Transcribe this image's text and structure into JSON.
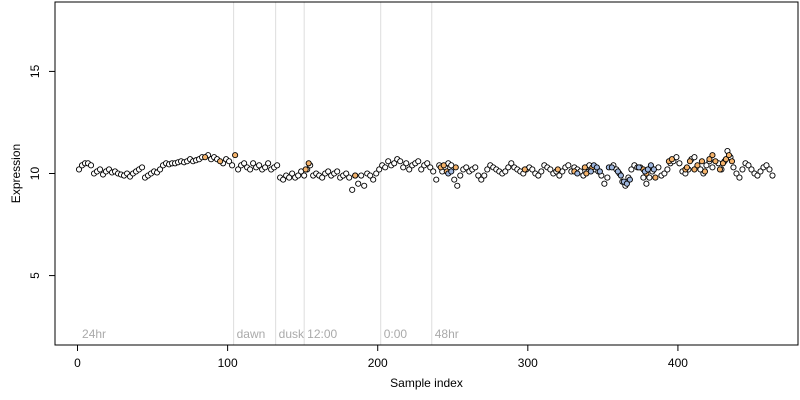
{
  "chart_data": {
    "type": "scatter",
    "xlabel": "Sample index",
    "ylabel": "Expression",
    "xlim": [
      -15,
      480
    ],
    "ylim": [
      1.6,
      18.4
    ],
    "xticks": [
      0,
      100,
      200,
      300,
      400
    ],
    "yticks": [
      5,
      10,
      15
    ],
    "grid": false,
    "vlines": [
      {
        "x": 104,
        "label": "dawn"
      },
      {
        "x": 132,
        "label": "dusk"
      },
      {
        "x": 151,
        "label": "12:00"
      },
      {
        "x": 202,
        "label": "0:00"
      },
      {
        "x": 236,
        "label": "48hr"
      }
    ],
    "annotations": [
      {
        "x": 3,
        "label": "24hr"
      }
    ],
    "colors": {
      "white": "#ffffff",
      "orange": "#f5b36b",
      "blue": "#9fb7df",
      "outline": "#000000",
      "vline": "#dddddd",
      "vlabel": "#aaaaaa"
    },
    "series": [
      {
        "category": "white",
        "points": [
          [
            1,
            10.2
          ],
          [
            3,
            10.4
          ],
          [
            5,
            10.5
          ],
          [
            7,
            10.5
          ],
          [
            9,
            10.4
          ],
          [
            11,
            10
          ],
          [
            13,
            10.1
          ],
          [
            15,
            10.2
          ],
          [
            17,
            9.95
          ],
          [
            19,
            10.1
          ],
          [
            21,
            10.2
          ],
          [
            23,
            10.05
          ],
          [
            25,
            10.1
          ],
          [
            27,
            10
          ],
          [
            29,
            9.95
          ],
          [
            31,
            9.9
          ],
          [
            33,
            10
          ],
          [
            35,
            9.85
          ],
          [
            37,
            10
          ],
          [
            39,
            10.1
          ],
          [
            41,
            10.2
          ],
          [
            43,
            10.3
          ],
          [
            45,
            9.8
          ],
          [
            47,
            9.9
          ],
          [
            49,
            10
          ],
          [
            51,
            10.1
          ],
          [
            53,
            10.05
          ],
          [
            55,
            10.2
          ],
          [
            57,
            10.4
          ],
          [
            59,
            10.5
          ],
          [
            61,
            10.45
          ],
          [
            63,
            10.5
          ],
          [
            65,
            10.5
          ],
          [
            67,
            10.55
          ],
          [
            69,
            10.6
          ],
          [
            71,
            10.55
          ],
          [
            73,
            10.6
          ],
          [
            75,
            10.7
          ],
          [
            77,
            10.6
          ],
          [
            79,
            10.65
          ],
          [
            81,
            10.7
          ],
          [
            83,
            10.8
          ],
          [
            87,
            10.9
          ],
          [
            89,
            10.7
          ],
          [
            91,
            10.8
          ],
          [
            93,
            10.7
          ],
          [
            97,
            10.5
          ],
          [
            99,
            10.7
          ],
          [
            101,
            10.6
          ],
          [
            103,
            10.4
          ],
          [
            107,
            10.2
          ],
          [
            109,
            10.4
          ],
          [
            111,
            10.5
          ],
          [
            113,
            10.3
          ],
          [
            115,
            10.2
          ],
          [
            117,
            10.5
          ],
          [
            119,
            10.3
          ],
          [
            121,
            10.4
          ],
          [
            123,
            10.2
          ],
          [
            125,
            10.3
          ],
          [
            127,
            10.5
          ],
          [
            129,
            10.2
          ],
          [
            131,
            10.3
          ],
          [
            133,
            10.4
          ],
          [
            135,
            9.8
          ],
          [
            137,
            9.7
          ],
          [
            139,
            9.9
          ],
          [
            141,
            9.8
          ],
          [
            143,
            10
          ],
          [
            145,
            9.8
          ],
          [
            147,
            9.9
          ],
          [
            149,
            10.1
          ],
          [
            151,
            9.9
          ],
          [
            153,
            10.2
          ],
          [
            155,
            10.4
          ],
          [
            157,
            9.9
          ],
          [
            159,
            10
          ],
          [
            161,
            9.9
          ],
          [
            163,
            9.8
          ],
          [
            165,
            10
          ],
          [
            167,
            10.1
          ],
          [
            169,
            9.9
          ],
          [
            171,
            10
          ],
          [
            173,
            10.1
          ],
          [
            175,
            9.8
          ],
          [
            177,
            9.9
          ],
          [
            179,
            10
          ],
          [
            181,
            9.8
          ],
          [
            183,
            9.2
          ],
          [
            185,
            9.9
          ],
          [
            187,
            9.5
          ],
          [
            189,
            9.9
          ],
          [
            191,
            9.4
          ],
          [
            193,
            10
          ],
          [
            195,
            9.9
          ],
          [
            197,
            9.7
          ],
          [
            199,
            10
          ],
          [
            201,
            10.2
          ],
          [
            203,
            10.4
          ],
          [
            205,
            10.3
          ],
          [
            207,
            10.6
          ],
          [
            209,
            10.4
          ],
          [
            211,
            10.5
          ],
          [
            213,
            10.7
          ],
          [
            215,
            10.6
          ],
          [
            217,
            10.3
          ],
          [
            219,
            10.5
          ],
          [
            221,
            10.2
          ],
          [
            223,
            10.4
          ],
          [
            225,
            10.5
          ],
          [
            227,
            10.6
          ],
          [
            229,
            10.2
          ],
          [
            231,
            10.4
          ],
          [
            233,
            10.5
          ],
          [
            235,
            10.3
          ],
          [
            237,
            10.1
          ],
          [
            239,
            9.7
          ],
          [
            241,
            10.4
          ],
          [
            243,
            10.1
          ],
          [
            245,
            10.3
          ],
          [
            247,
            10.5
          ],
          [
            249,
            10.4
          ],
          [
            251,
            9.7
          ],
          [
            253,
            9.4
          ],
          [
            255,
            9.9
          ],
          [
            257,
            10.2
          ],
          [
            259,
            10.3
          ],
          [
            261,
            10.1
          ],
          [
            263,
            10.2
          ],
          [
            265,
            10.3
          ],
          [
            267,
            9.9
          ],
          [
            269,
            9.7
          ],
          [
            271,
            9.9
          ],
          [
            273,
            10.2
          ],
          [
            275,
            10.4
          ],
          [
            277,
            10.3
          ],
          [
            279,
            10.2
          ],
          [
            281,
            10.1
          ],
          [
            283,
            10
          ],
          [
            285,
            10.1
          ],
          [
            287,
            10.3
          ],
          [
            289,
            10.5
          ],
          [
            291,
            10.3
          ],
          [
            293,
            10.2
          ],
          [
            295,
            10.1
          ],
          [
            297,
            10
          ],
          [
            299,
            10.2
          ],
          [
            301,
            10.3
          ],
          [
            303,
            10.2
          ],
          [
            305,
            10
          ],
          [
            307,
            9.9
          ],
          [
            309,
            10.1
          ],
          [
            311,
            10.4
          ],
          [
            313,
            10.3
          ],
          [
            315,
            10.2
          ],
          [
            317,
            10
          ],
          [
            319,
            10.1
          ],
          [
            321,
            9.9
          ],
          [
            323,
            10.1
          ],
          [
            325,
            10.3
          ],
          [
            327,
            10.4
          ],
          [
            329,
            10.1
          ],
          [
            331,
            10.3
          ],
          [
            333,
            10.2
          ],
          [
            335,
            10.1
          ],
          [
            337,
            9.9
          ],
          [
            339,
            10.3
          ],
          [
            341,
            10.4
          ],
          [
            345,
            10.2
          ],
          [
            347,
            10.1
          ],
          [
            349,
            9.9
          ],
          [
            351,
            9.5
          ],
          [
            353,
            9.8
          ],
          [
            357,
            10.4
          ],
          [
            359,
            10.2
          ],
          [
            361,
            10
          ],
          [
            363,
            9.6
          ],
          [
            365,
            9.4
          ],
          [
            367,
            9.8
          ],
          [
            369,
            10.2
          ],
          [
            371,
            10.4
          ],
          [
            373,
            10.3
          ],
          [
            375,
            10.3
          ],
          [
            377,
            9.8
          ],
          [
            379,
            9.5
          ],
          [
            381,
            9.8
          ],
          [
            383,
            10.1
          ],
          [
            387,
            10.3
          ],
          [
            389,
            9.9
          ],
          [
            391,
            10
          ],
          [
            393,
            10.2
          ],
          [
            395,
            10.5
          ],
          [
            397,
            10.6
          ],
          [
            399,
            10.8
          ],
          [
            401,
            10.5
          ],
          [
            403,
            10.1
          ],
          [
            405,
            10
          ],
          [
            407,
            10.2
          ],
          [
            409,
            10.7
          ],
          [
            411,
            10.8
          ],
          [
            415,
            10.2
          ],
          [
            417,
            10
          ],
          [
            419,
            10.4
          ],
          [
            421,
            10.6
          ],
          [
            423,
            10.3
          ],
          [
            427,
            10.5
          ],
          [
            429,
            10.2
          ],
          [
            431,
            10.6
          ],
          [
            433,
            11.1
          ],
          [
            435,
            10.8
          ],
          [
            437,
            10.3
          ],
          [
            439,
            10
          ],
          [
            441,
            9.8
          ],
          [
            443,
            10.2
          ],
          [
            445,
            10.5
          ],
          [
            447,
            10.4
          ],
          [
            449,
            10.2
          ],
          [
            451,
            10
          ],
          [
            453,
            9.9
          ],
          [
            455,
            10.1
          ],
          [
            457,
            10.3
          ],
          [
            459,
            10.4
          ],
          [
            461,
            10.2
          ],
          [
            463,
            9.9
          ]
        ]
      },
      {
        "category": "orange",
        "points": [
          [
            85,
            10.8
          ],
          [
            95,
            10.6
          ],
          [
            105,
            10.9
          ],
          [
            152,
            10.2
          ],
          [
            154,
            10.5
          ],
          [
            185,
            9.9
          ],
          [
            242,
            10.3
          ],
          [
            244,
            10.4
          ],
          [
            246,
            10.1
          ],
          [
            252,
            10.3
          ],
          [
            298,
            10.2
          ],
          [
            320,
            10.2
          ],
          [
            331,
            10.1
          ],
          [
            338,
            10.3
          ],
          [
            339,
            10
          ],
          [
            343,
            10.3
          ],
          [
            377,
            10.2
          ],
          [
            379,
            10
          ],
          [
            385,
            9.8
          ],
          [
            394,
            10.6
          ],
          [
            396,
            10.7
          ],
          [
            405,
            10.2
          ],
          [
            406,
            10.3
          ],
          [
            408,
            10.6
          ],
          [
            411,
            10.2
          ],
          [
            413,
            10.4
          ],
          [
            416,
            10.6
          ],
          [
            418,
            10.1
          ],
          [
            421,
            10.7
          ],
          [
            423,
            10.9
          ],
          [
            425,
            10.6
          ],
          [
            428,
            10.2
          ],
          [
            430,
            10.5
          ],
          [
            432,
            10.7
          ],
          [
            434,
            10.9
          ],
          [
            436,
            10.6
          ]
        ]
      },
      {
        "category": "blue",
        "points": [
          [
            247,
            10
          ],
          [
            249,
            10.1
          ],
          [
            333,
            10
          ],
          [
            342,
            10.1
          ],
          [
            344,
            10.4
          ],
          [
            346,
            10.3
          ],
          [
            348,
            10.1
          ],
          [
            354,
            10.3
          ],
          [
            356,
            10.3
          ],
          [
            360,
            10.1
          ],
          [
            362,
            9.9
          ],
          [
            364,
            9.6
          ],
          [
            366,
            9.5
          ],
          [
            368,
            9.7
          ],
          [
            374,
            10.3
          ],
          [
            378,
            10.1
          ],
          [
            380,
            10.2
          ],
          [
            382,
            10.4
          ],
          [
            384,
            10.2
          ]
        ]
      }
    ]
  }
}
